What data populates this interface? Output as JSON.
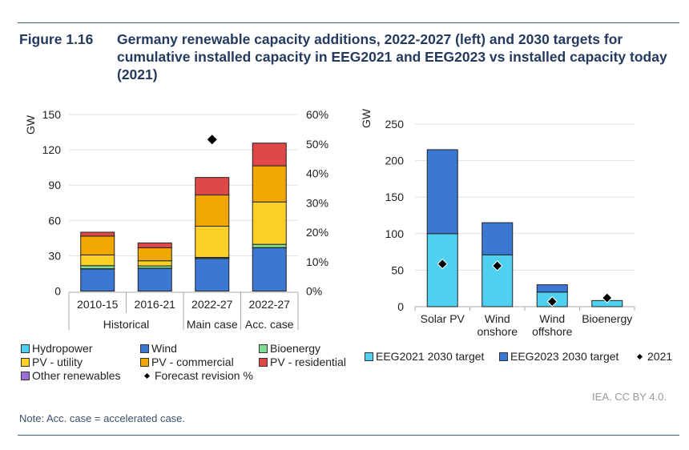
{
  "figure": {
    "number": "Figure 1.16",
    "title": "Germany renewable capacity additions, 2022-2027 (left) and 2030 targets for cumulative installed capacity in EEG2021 and EEG2023 vs installed capacity today (2021)",
    "credit": "IEA. CC BY 4.0.",
    "note": "Note: Acc. case = accelerated case."
  },
  "chart_data": [
    {
      "type": "bar",
      "stacked": true,
      "title": "",
      "ylabel": "GW",
      "ylim": [
        0,
        150
      ],
      "yticks": [
        "0",
        "30",
        "60",
        "90",
        "120",
        "150"
      ],
      "y2lim": [
        0,
        60
      ],
      "y2ticks": [
        "0%",
        "10%",
        "20%",
        "30%",
        "40%",
        "50%",
        "60%"
      ],
      "grid": true,
      "categories": [
        "2010-15",
        "2016-21",
        "2022-27",
        "2022-27"
      ],
      "category_groups": [
        {
          "label": "Historical",
          "span": 2
        },
        {
          "label": "Main case",
          "span": 1
        },
        {
          "label": "Acc. case",
          "span": 1
        }
      ],
      "series": [
        {
          "name": "Wind",
          "color": "#3a78d4",
          "values": [
            18.7,
            19.3,
            27.7,
            36.8
          ]
        },
        {
          "name": "Hydropower",
          "color": "#4fd0f0",
          "values": [
            0.3,
            0.1,
            0.1,
            0.1
          ]
        },
        {
          "name": "Bioenergy",
          "color": "#7fdc93",
          "values": [
            2.6,
            2.0,
            0.8,
            2.8
          ]
        },
        {
          "name": "PV - utility",
          "color": "#fcd025",
          "values": [
            9.1,
            4.3,
            26.5,
            36.0
          ]
        },
        {
          "name": "PV - commercial",
          "color": "#f0a800",
          "values": [
            16.0,
            11.1,
            26.5,
            30.7
          ]
        },
        {
          "name": "PV - residential",
          "color": "#e04848",
          "values": [
            3.3,
            4.1,
            14.9,
            19.3
          ]
        },
        {
          "name": "Other renewables",
          "color": "#9b6fd6",
          "values": [
            0,
            0,
            0,
            0
          ]
        }
      ],
      "markers": {
        "name": "Forecast revision %",
        "axis": "right",
        "values": [
          null,
          null,
          51.5,
          null
        ]
      },
      "legend": {
        "position": "bottom",
        "items": [
          {
            "label": "Hydropower",
            "color": "#4fd0f0",
            "kind": "box"
          },
          {
            "label": "Wind",
            "color": "#3a78d4",
            "kind": "box"
          },
          {
            "label": "Bioenergy",
            "color": "#7fdc93",
            "kind": "box"
          },
          {
            "label": "PV - utility",
            "color": "#fcd025",
            "kind": "box"
          },
          {
            "label": "PV - commercial",
            "color": "#f0a800",
            "kind": "box"
          },
          {
            "label": "PV - residential",
            "color": "#e04848",
            "kind": "box"
          },
          {
            "label": "Other renewables",
            "color": "#9b6fd6",
            "kind": "box"
          },
          {
            "label": "Forecast revision %",
            "color": "#000000",
            "kind": "diamond"
          }
        ]
      }
    },
    {
      "type": "bar",
      "stacked": true,
      "title": "",
      "ylabel": "GW",
      "ylim": [
        0,
        250
      ],
      "yticks": [
        "0",
        "50",
        "100",
        "150",
        "200",
        "250"
      ],
      "grid": true,
      "categories": [
        "Solar PV",
        "Wind onshore",
        "Wind offshore",
        "Bioenergy"
      ],
      "category_lines": [
        [
          "Solar PV"
        ],
        [
          "Wind",
          "onshore"
        ],
        [
          "Wind",
          "offshore"
        ],
        [
          "Bioenergy"
        ]
      ],
      "series": [
        {
          "name": "EEG2021 2030 target",
          "color": "#4fd0f0",
          "values": [
            100,
            71,
            20,
            8.4
          ]
        },
        {
          "name": "EEG2023 2030 target",
          "color": "#3a78d4",
          "values": [
            115,
            44,
            10,
            0
          ]
        }
      ],
      "markers": {
        "name": "2021",
        "values": [
          58.5,
          56,
          7,
          12
        ]
      },
      "legend": {
        "position": "bottom",
        "items": [
          {
            "label": "EEG2021 2030 target",
            "color": "#4fd0f0",
            "kind": "box"
          },
          {
            "label": "EEG2023 2030 target",
            "color": "#3a78d4",
            "kind": "box"
          },
          {
            "label": "2021",
            "color": "#000000",
            "kind": "diamond"
          }
        ]
      }
    }
  ]
}
